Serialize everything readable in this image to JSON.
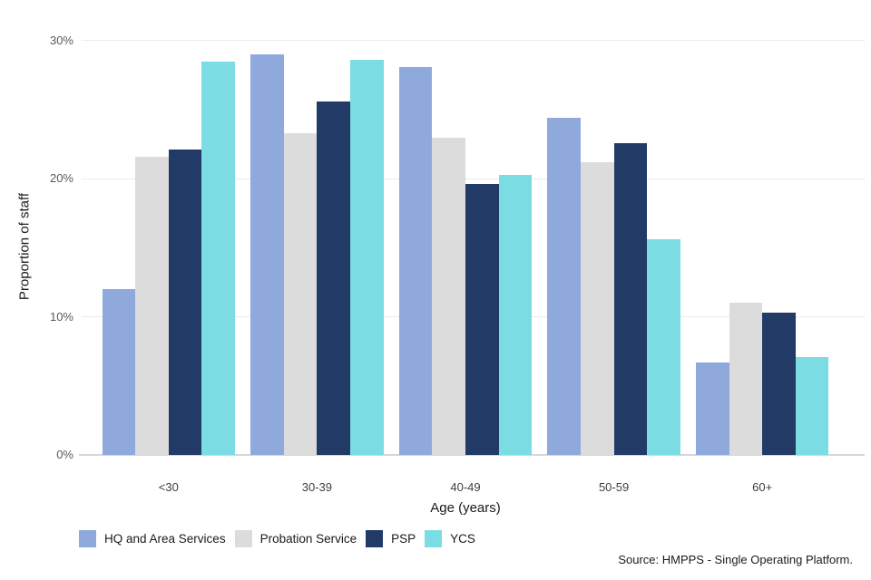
{
  "figure": {
    "y_axis_title": "Proportion of staff",
    "x_axis_title": "Age (years)",
    "source_note": "Source: HMPPS - Single Operating Platform."
  },
  "chart_data": {
    "type": "bar",
    "title": "",
    "xlabel": "Age (years)",
    "ylabel": "Proportion of staff",
    "categories": [
      "<30",
      "30-39",
      "40-49",
      "50-59",
      "60+"
    ],
    "series": [
      {
        "name": "HQ and Area Services",
        "color": "#8FA9DC",
        "values": [
          12.0,
          29.0,
          28.1,
          24.4,
          6.7
        ]
      },
      {
        "name": "Probation Service",
        "color": "#DCDCDC",
        "values": [
          21.6,
          23.3,
          23.0,
          21.2,
          11.0
        ]
      },
      {
        "name": "PSP",
        "color": "#213A66",
        "values": [
          22.1,
          25.6,
          19.6,
          22.6,
          10.3
        ]
      },
      {
        "name": "YCS",
        "color": "#7BDCE3",
        "values": [
          28.5,
          28.6,
          20.3,
          15.6,
          7.1
        ]
      }
    ],
    "ylim": [
      0,
      30
    ],
    "yticks": [
      {
        "value": 0,
        "label": "0%"
      },
      {
        "value": 10,
        "label": "10%"
      },
      {
        "value": 20,
        "label": "20%"
      },
      {
        "value": 30,
        "label": "30%"
      }
    ],
    "grid": "horizontal",
    "legend_position": "bottom",
    "source": "Source: HMPPS - Single Operating Platform."
  }
}
